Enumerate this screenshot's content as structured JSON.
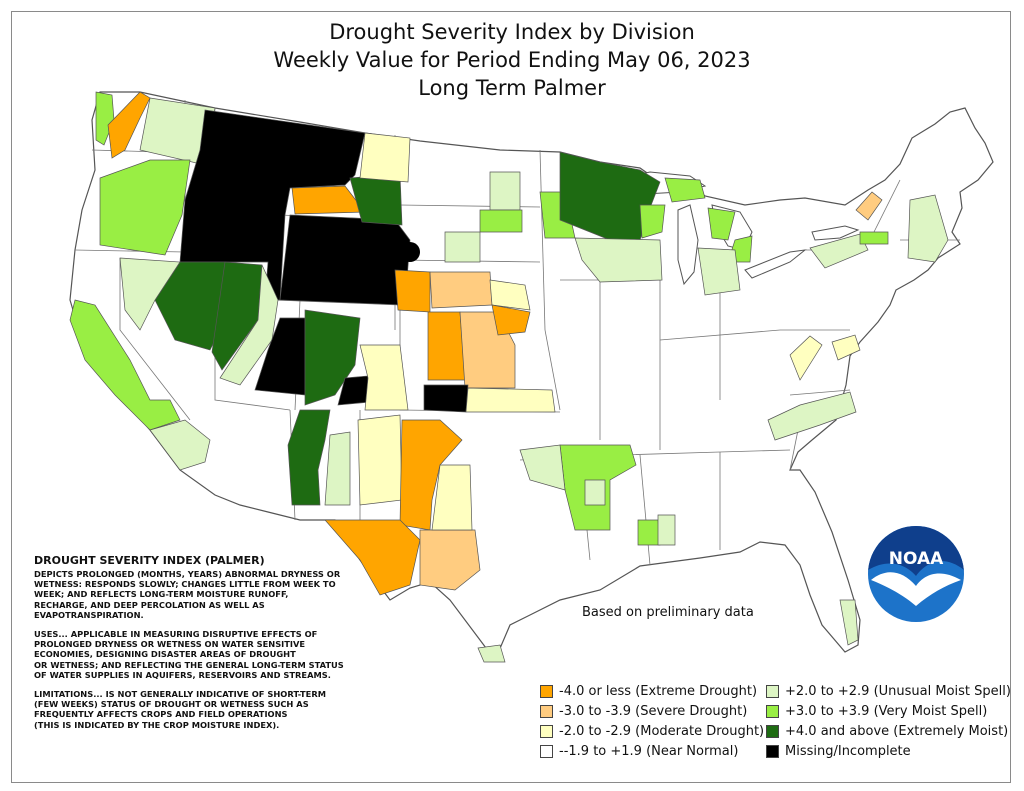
{
  "title": {
    "line1": "Drought Severity Index by Division",
    "line2": "Weekly Value for Period Ending May 06, 2023",
    "line3": "Long Term Palmer"
  },
  "notes": {
    "heading": "DROUGHT SEVERITY INDEX (PALMER)",
    "p1": "DEPICTS PROLONGED (MONTHS, YEARS) ABNORMAL DRYNESS OR\nWETNESS: RESPONDS SLOWLY; CHANGES LITTLE FROM WEEK TO\nWEEK; AND REFLECTS LONG-TERM MOISTURE RUNOFF,\nRECHARGE, AND DEEP PERCOLATION AS WELL AS\nEVAPOTRANSPIRATION.",
    "p2": "USES... APPLICABLE IN MEASURING DISRUPTIVE EFFECTS OF\nPROLONGED DRYNESS OR WETNESS ON WATER SENSITIVE\nECONOMIES, DESIGNING DISASTER AREAS OF DROUGHT\nOR WETNESS; AND REFLECTING THE GENERAL LONG-TERM STATUS\nOF WATER SUPPLIES IN AQUIFERS, RESERVOIRS AND STREAMS.",
    "p3": "LIMITATIONS... IS NOT GENERALLY INDICATIVE OF SHORT-TERM\n(FEW WEEKS) STATUS OF DROUGHT OR WETNESS SUCH AS\nFREQUENTLY AFFECTS CROPS AND FIELD OPERATIONS\n(THIS IS INDICATED BY THE CROP MOISTURE INDEX)."
  },
  "prelim": "Based on preliminary data",
  "legend": [
    {
      "label": "-4.0 or less (Extreme Drought)",
      "color": "#ffa500"
    },
    {
      "label": "-3.0 to -3.9 (Severe Drought)",
      "color": "#ffcc80"
    },
    {
      "label": "-2.0 to -2.9 (Moderate Drought)",
      "color": "#ffffc0"
    },
    {
      "label": "--1.9 to +1.9 (Near Normal)",
      "color": "#ffffff"
    },
    {
      "label": "+2.0 to +2.9 (Unusual Moist Spell)",
      "color": "#ddf5c4"
    },
    {
      "label": "+3.0 to +3.9 (Very Moist Spell)",
      "color": "#99ee44"
    },
    {
      "label": "+4.0 and above (Extremely Moist)",
      "color": "#1e6b12"
    },
    {
      "label": "Missing/Incomplete",
      "color": "#000000"
    }
  ],
  "logo": {
    "text": "NOAA",
    "color": "#1d73c9"
  },
  "colors": {
    "extreme_drought": "#ffa500",
    "severe_drought": "#ffcc80",
    "moderate_drought": "#ffffc0",
    "near_normal": "#ffffff",
    "unusual_moist": "#ddf5c4",
    "very_moist": "#99ee44",
    "extremely_moist": "#1e6b12",
    "missing": "#000000"
  }
}
